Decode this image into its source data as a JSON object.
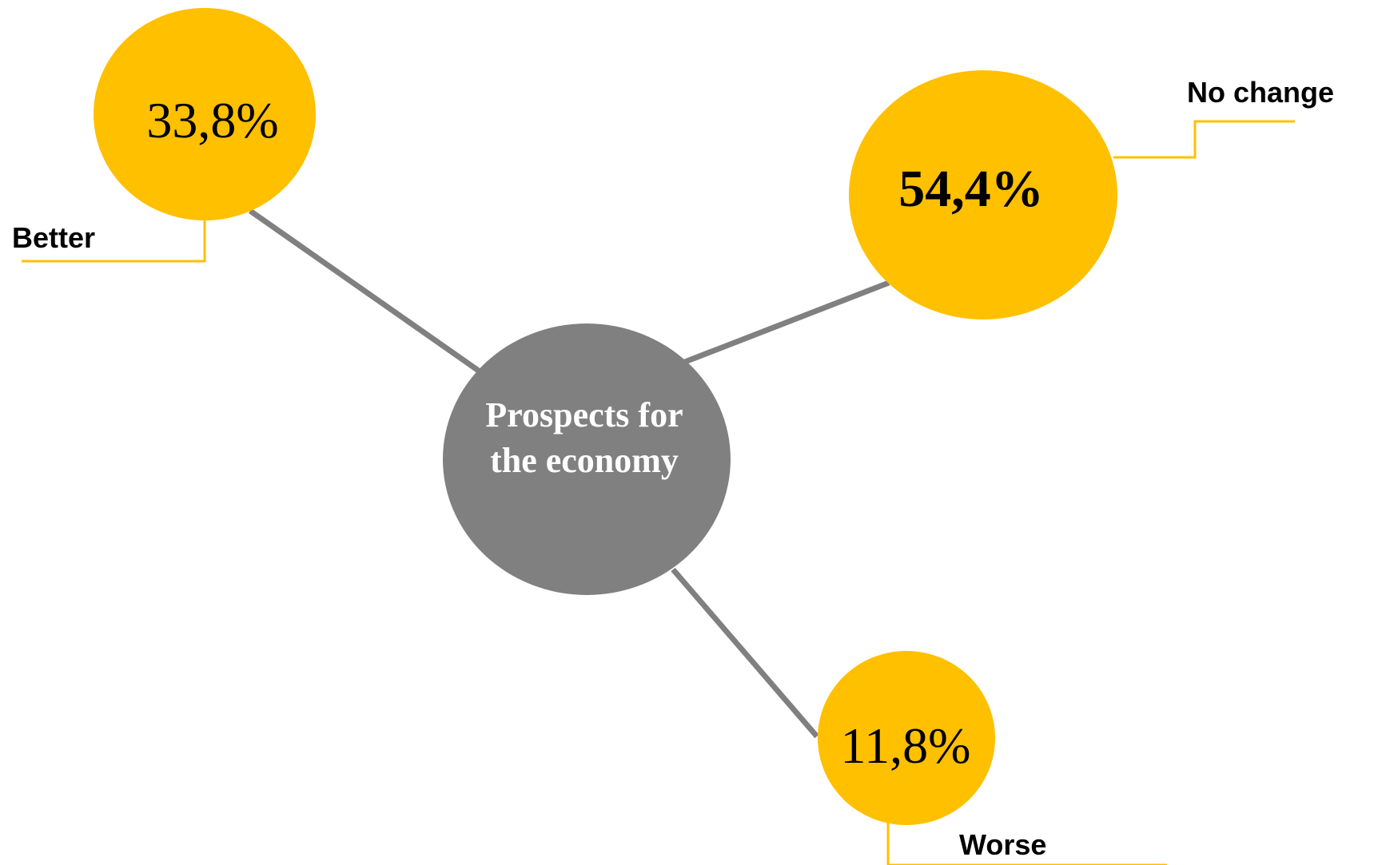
{
  "colors": {
    "bubble": "#FFC000",
    "center": "#808080",
    "connector": "#808080",
    "leader": "#FFC000",
    "center_text": "#FFFFFF"
  },
  "center": {
    "title_line1": "Prospects for",
    "title_line2": "the economy"
  },
  "chart_data": {
    "type": "bubble-diagram",
    "categories": [
      "Better",
      "No change",
      "Worse"
    ],
    "values": [
      33.8,
      54.4,
      11.8
    ],
    "unit": "%"
  },
  "nodes": {
    "better": {
      "label": "Better",
      "value": "33,8%"
    },
    "no_change": {
      "label": "No change",
      "value": "54,4%"
    },
    "worse": {
      "label": "Worse",
      "value": "11,8%"
    }
  }
}
